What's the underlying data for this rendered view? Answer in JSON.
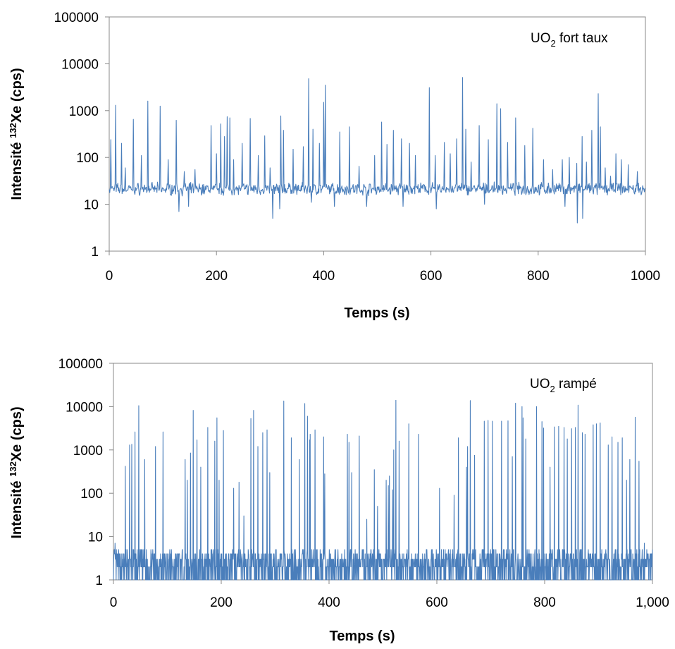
{
  "chart_data": [
    {
      "type": "line",
      "xlabel": "Temps (s)",
      "ylabel_main": "Intensité ",
      "ylabel_sup": "132",
      "ylabel_end": "Xe (cps)",
      "annotation": {
        "main": "UO",
        "sub": "2",
        "rest": " fort taux"
      },
      "x_ticks": [
        "0",
        "200",
        "400",
        "600",
        "800",
        "1000"
      ],
      "y_ticks": [
        "1",
        "10",
        "100",
        "1000",
        "10000",
        "100000"
      ],
      "xlim": [
        0,
        1000
      ],
      "ylim": [
        1,
        100000
      ],
      "yscale": "log",
      "grid": false,
      "line_color": "#4a7ebb",
      "series": [
        {
          "baseline": [
            15,
            30
          ],
          "peaks": [
            [
              3,
              240
            ],
            [
              12,
              1300
            ],
            [
              23,
              200
            ],
            [
              30,
              60
            ],
            [
              45,
              650
            ],
            [
              60,
              110
            ],
            [
              72,
              1600
            ],
            [
              95,
              1250
            ],
            [
              110,
              90
            ],
            [
              125,
              620
            ],
            [
              140,
              50
            ],
            [
              160,
              55
            ],
            [
              190,
              480
            ],
            [
              200,
              120
            ],
            [
              208,
              520
            ],
            [
              215,
              280
            ],
            [
              220,
              740
            ],
            [
              225,
              700
            ],
            [
              232,
              90
            ],
            [
              248,
              200
            ],
            [
              263,
              680
            ],
            [
              278,
              110
            ],
            [
              290,
              290
            ],
            [
              300,
              60
            ],
            [
              320,
              770
            ],
            [
              325,
              380
            ],
            [
              343,
              150
            ],
            [
              362,
              170
            ],
            [
              372,
              4800
            ],
            [
              380,
              400
            ],
            [
              392,
              200
            ],
            [
              400,
              1500
            ],
            [
              403,
              3500
            ],
            [
              420,
              180
            ],
            [
              430,
              350
            ],
            [
              448,
              450
            ],
            [
              466,
              65
            ],
            [
              480,
              260
            ],
            [
              495,
              110
            ],
            [
              508,
              570
            ],
            [
              518,
              190
            ],
            [
              530,
              380
            ],
            [
              545,
              250
            ],
            [
              560,
              200
            ],
            [
              571,
              110
            ],
            [
              597,
              3100
            ],
            [
              608,
              110
            ],
            [
              625,
              210
            ],
            [
              636,
              120
            ],
            [
              648,
              250
            ],
            [
              659,
              5100
            ],
            [
              665,
              400
            ],
            [
              675,
              80
            ],
            [
              690,
              480
            ],
            [
              707,
              240
            ],
            [
              723,
              1400
            ],
            [
              730,
              1100
            ],
            [
              743,
              210
            ],
            [
              758,
              700
            ],
            [
              775,
              180
            ],
            [
              790,
              420
            ],
            [
              810,
              90
            ],
            [
              827,
              55
            ],
            [
              845,
              90
            ],
            [
              858,
              100
            ],
            [
              872,
              75
            ],
            [
              882,
              280
            ],
            [
              890,
              80
            ],
            [
              900,
              380
            ],
            [
              912,
              2300
            ],
            [
              916,
              450
            ],
            [
              925,
              60
            ],
            [
              935,
              40
            ],
            [
              945,
              120
            ],
            [
              955,
              90
            ],
            [
              968,
              70
            ],
            [
              985,
              50
            ],
            [
              995,
              25
            ]
          ],
          "dips": [
            [
              130,
              7
            ],
            [
              148,
              9
            ],
            [
              305,
              5
            ],
            [
              318,
              8
            ],
            [
              377,
              11
            ],
            [
              420,
              9
            ],
            [
              480,
              9
            ],
            [
              548,
              9
            ],
            [
              610,
              8
            ],
            [
              700,
              10
            ],
            [
              850,
              9
            ],
            [
              873,
              4
            ],
            [
              883,
              5
            ]
          ]
        }
      ]
    },
    {
      "type": "line",
      "xlabel": "Temps (s)",
      "ylabel_main": "Intensité ",
      "ylabel_sup": "132",
      "ylabel_end": "Xe (cps)",
      "annotation": {
        "main": "UO",
        "sub": "2",
        "rest": " rampé"
      },
      "x_ticks": [
        "0",
        "200",
        "400",
        "600",
        "800",
        "1,000"
      ],
      "y_ticks": [
        "1",
        "10",
        "100",
        "1000",
        "10000",
        "100000"
      ],
      "xlim": [
        0,
        1000
      ],
      "ylim": [
        1,
        100000
      ],
      "yscale": "log",
      "grid": false,
      "line_color": "#4a7ebb",
      "series": [
        {
          "baseline": [
            1,
            5
          ],
          "peaks": [
            [
              3,
              7
            ],
            [
              22,
              420
            ],
            [
              30,
              1300
            ],
            [
              34,
              1350
            ],
            [
              40,
              2600
            ],
            [
              47,
              10500
            ],
            [
              58,
              600
            ],
            [
              78,
              1200
            ],
            [
              92,
              2600
            ],
            [
              133,
              600
            ],
            [
              137,
              200
            ],
            [
              143,
              850
            ],
            [
              148,
              8200
            ],
            [
              155,
              1700
            ],
            [
              162,
              400
            ],
            [
              175,
              3300
            ],
            [
              188,
              1600
            ],
            [
              192,
              5500
            ],
            [
              196,
              200
            ],
            [
              204,
              2800
            ],
            [
              223,
              130
            ],
            [
              233,
              180
            ],
            [
              242,
              30
            ],
            [
              255,
              5300
            ],
            [
              260,
              8200
            ],
            [
              268,
              1200
            ],
            [
              277,
              2500
            ],
            [
              285,
              2900
            ],
            [
              290,
              300
            ],
            [
              316,
              13500
            ],
            [
              330,
              1900
            ],
            [
              345,
              600
            ],
            [
              355,
              11800
            ],
            [
              360,
              6000
            ],
            [
              364,
              1700
            ],
            [
              365,
              2300
            ],
            [
              374,
              2900
            ],
            [
              390,
              2000
            ],
            [
              392,
              280
            ],
            [
              434,
              2300
            ],
            [
              437,
              1500
            ],
            [
              442,
              300
            ],
            [
              456,
              2100
            ],
            [
              470,
              25
            ],
            [
              484,
              350
            ],
            [
              490,
              50
            ],
            [
              506,
              200
            ],
            [
              510,
              150
            ],
            [
              512,
              250
            ],
            [
              518,
              120
            ],
            [
              520,
              1000
            ],
            [
              524,
              14000
            ],
            [
              530,
              1600
            ],
            [
              548,
              4000
            ],
            [
              566,
              2300
            ],
            [
              605,
              130
            ],
            [
              632,
              90
            ],
            [
              640,
              1900
            ],
            [
              655,
              400
            ],
            [
              657,
              1200
            ],
            [
              662,
              13800
            ],
            [
              670,
              750
            ],
            [
              688,
              4600
            ],
            [
              695,
              4800
            ],
            [
              703,
              4600
            ],
            [
              720,
              4600
            ],
            [
              732,
              4700
            ],
            [
              740,
              700
            ],
            [
              746,
              12000
            ],
            [
              758,
              10000
            ],
            [
              760,
              5500
            ],
            [
              765,
              1800
            ],
            [
              785,
              10000
            ],
            [
              795,
              4500
            ],
            [
              798,
              3200
            ],
            [
              810,
              400
            ],
            [
              818,
              3400
            ],
            [
              826,
              3500
            ],
            [
              836,
              3300
            ],
            [
              842,
              1800
            ],
            [
              850,
              3100
            ],
            [
              857,
              3300
            ],
            [
              862,
              10800
            ],
            [
              870,
              2500
            ],
            [
              875,
              2300
            ],
            [
              890,
              3800
            ],
            [
              896,
              4000
            ],
            [
              903,
              4200
            ],
            [
              918,
              1300
            ],
            [
              925,
              2000
            ],
            [
              936,
              1500
            ],
            [
              944,
              1900
            ],
            [
              952,
              200
            ],
            [
              958,
              600
            ],
            [
              968,
              5700
            ],
            [
              975,
              550
            ],
            [
              985,
              7
            ],
            [
              995,
              3
            ]
          ],
          "dips": []
        }
      ]
    }
  ]
}
